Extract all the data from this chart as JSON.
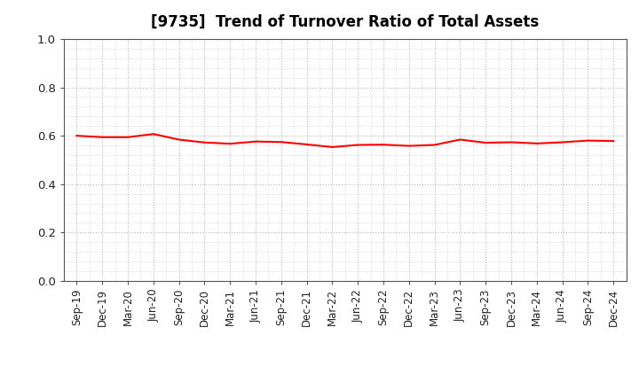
{
  "title": "[9735]  Trend of Turnover Ratio of Total Assets",
  "x_labels": [
    "Sep-19",
    "Dec-19",
    "Mar-20",
    "Jun-20",
    "Sep-20",
    "Dec-20",
    "Mar-21",
    "Jun-21",
    "Sep-21",
    "Dec-21",
    "Mar-22",
    "Jun-22",
    "Sep-22",
    "Dec-22",
    "Mar-23",
    "Jun-23",
    "Sep-23",
    "Dec-23",
    "Mar-24",
    "Jun-24",
    "Sep-24",
    "Dec-24"
  ],
  "y_values": [
    0.6,
    0.594,
    0.594,
    0.607,
    0.584,
    0.572,
    0.567,
    0.576,
    0.574,
    0.564,
    0.553,
    0.562,
    0.563,
    0.558,
    0.562,
    0.584,
    0.571,
    0.573,
    0.568,
    0.573,
    0.58,
    0.578
  ],
  "line_color": "#ff0000",
  "line_width": 1.5,
  "ylim": [
    0.0,
    1.0
  ],
  "yticks": [
    0.0,
    0.2,
    0.4,
    0.6,
    0.8,
    1.0
  ],
  "grid_color": "#b0b0b0",
  "background_color": "#ffffff",
  "title_fontsize": 12,
  "tick_fontsize": 8.5,
  "axis_label_color": "#222222"
}
